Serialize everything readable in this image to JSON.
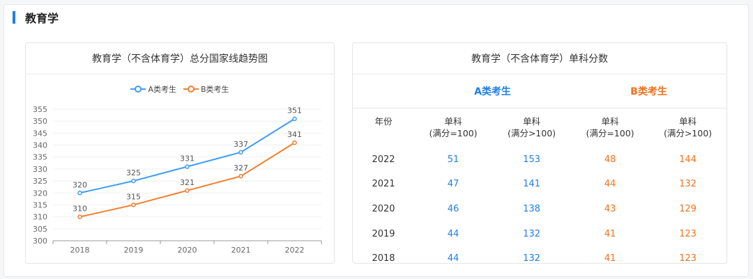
{
  "section": {
    "title": "教育学"
  },
  "left_card": {
    "title": "教育学（不含体育学）总分国家线趋势图"
  },
  "right_card": {
    "title": "教育学（不含体育学）单科分数"
  },
  "colors": {
    "series_a": "#3c9cf5",
    "series_b": "#f57e2d",
    "a_text": "#1f7fe8",
    "b_text": "#f2711c"
  },
  "legend": {
    "a": "A类考生",
    "b": "B类考生"
  },
  "chart_data": {
    "type": "line",
    "title": "教育学（不含体育学）总分国家线趋势图",
    "x": [
      "2018",
      "2019",
      "2020",
      "2021",
      "2022"
    ],
    "series": [
      {
        "name": "A类考生",
        "values": [
          320,
          325,
          331,
          337,
          351
        ]
      },
      {
        "name": "B类考生",
        "values": [
          310,
          315,
          321,
          327,
          341
        ]
      }
    ],
    "ylim": [
      300,
      355
    ],
    "yticks": [
      300,
      305,
      310,
      315,
      320,
      325,
      330,
      335,
      340,
      345,
      350,
      355
    ],
    "grid": true,
    "legend_position": "top"
  },
  "table": {
    "groups": {
      "a": "A类考生",
      "b": "B类考生"
    },
    "headers": {
      "year": "年份",
      "col1": [
        "单科",
        "(满分=100)"
      ],
      "col2": [
        "单科",
        "(满分>100)"
      ],
      "col3": [
        "单科",
        "(满分=100)"
      ],
      "col4": [
        "单科",
        "(满分>100)"
      ]
    },
    "rows": [
      {
        "year": "2022",
        "a1": "51",
        "a2": "153",
        "b1": "48",
        "b2": "144"
      },
      {
        "year": "2021",
        "a1": "47",
        "a2": "141",
        "b1": "44",
        "b2": "132"
      },
      {
        "year": "2020",
        "a1": "46",
        "a2": "138",
        "b1": "43",
        "b2": "129"
      },
      {
        "year": "2019",
        "a1": "44",
        "a2": "132",
        "b1": "41",
        "b2": "123"
      },
      {
        "year": "2018",
        "a1": "44",
        "a2": "132",
        "b1": "41",
        "b2": "123"
      }
    ]
  }
}
